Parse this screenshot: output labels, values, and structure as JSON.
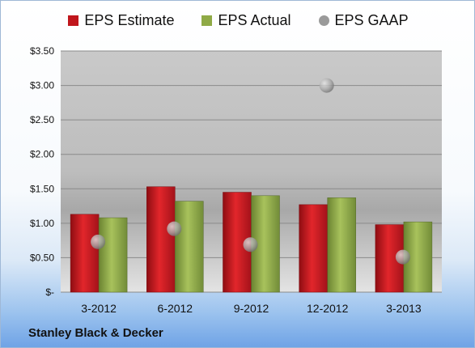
{
  "legend": {
    "estimate": "EPS Estimate",
    "actual": "EPS Actual",
    "gaap": "EPS GAAP"
  },
  "company": "Stanley Black & Decker",
  "colors": {
    "estimate": "#c0161c",
    "actual": "#8faa46",
    "gaap": "#9a9a9a"
  },
  "chart_data": {
    "type": "bar",
    "categories": [
      "3-2012",
      "6-2012",
      "9-2012",
      "12-2012",
      "3-2013"
    ],
    "series": [
      {
        "name": "EPS Estimate",
        "type": "bar",
        "values": [
          1.13,
          1.53,
          1.45,
          1.27,
          0.98
        ]
      },
      {
        "name": "EPS Actual",
        "type": "bar",
        "values": [
          1.08,
          1.32,
          1.4,
          1.37,
          1.02
        ]
      },
      {
        "name": "EPS GAAP",
        "type": "scatter",
        "values": [
          0.73,
          0.92,
          0.69,
          3.0,
          0.51
        ]
      }
    ],
    "ylim": [
      0,
      3.5
    ],
    "yticks": [
      0,
      0.5,
      1.0,
      1.5,
      2.0,
      2.5,
      3.0,
      3.5
    ],
    "ytick_labels": [
      "$-",
      "$0.50",
      "$1.00",
      "$1.50",
      "$2.00",
      "$2.50",
      "$3.00",
      "$3.50"
    ],
    "grid": true,
    "legend_position": "top"
  }
}
